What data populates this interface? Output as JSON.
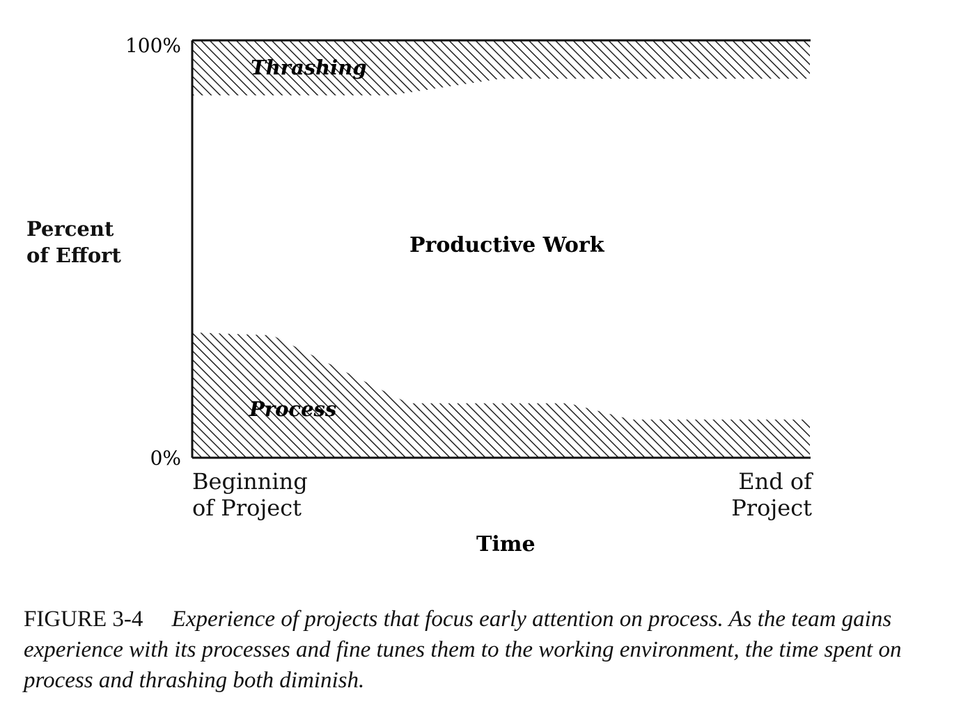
{
  "chart_data": {
    "type": "area",
    "title": "",
    "ylabel": "Percent of Effort",
    "xlabel": "Time",
    "x_tick_labels": [
      "Beginning of Project",
      "End of Project"
    ],
    "y_tick_labels": [
      "0%",
      "100%"
    ],
    "ylim": [
      0,
      100
    ],
    "xlim": [
      0,
      100
    ],
    "grid": false,
    "series": [
      {
        "name": "Process",
        "x": [
          0,
          13,
          35,
          61,
          71,
          100
        ],
        "upper": [
          29.9,
          29.2,
          12.9,
          12.9,
          9.0,
          9.0
        ],
        "lower": [
          0,
          0,
          0,
          0,
          0,
          0
        ],
        "fill": "hatched"
      },
      {
        "name": "Productive Work",
        "fill": "none"
      },
      {
        "name": "Thrashing",
        "x": [
          0,
          32,
          50,
          100
        ],
        "lower": [
          86.8,
          86.8,
          90.8,
          90.8
        ],
        "upper": [
          100,
          100,
          100,
          100
        ],
        "fill": "hatched"
      }
    ]
  },
  "labels": {
    "ylabel_line1": "Percent",
    "ylabel_line2": "of Effort",
    "x_begin_1": "Beginning",
    "x_begin_2": "of Project",
    "x_end_1": "End of",
    "x_end_2": "Project"
  },
  "caption": {
    "figure": "FIGURE 3-4",
    "text": "Experience of projects that focus early attention on process. As the team gains experience with its processes and fine tunes them to the working environment, the time spent on process and thrashing both diminish."
  },
  "colors": {
    "ink": "#111111",
    "background": "#ffffff"
  }
}
